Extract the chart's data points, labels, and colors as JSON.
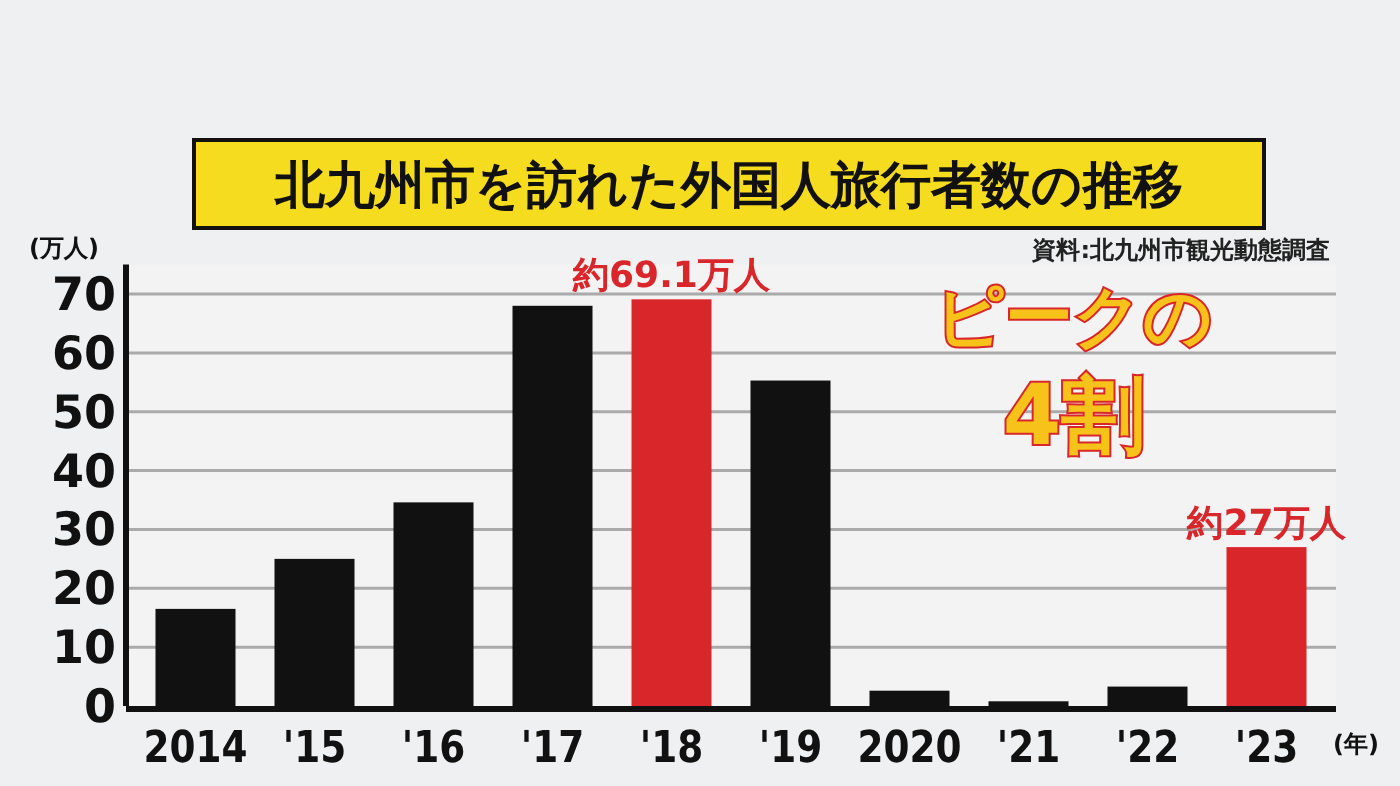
{
  "chart_data": {
    "type": "bar",
    "title": "北九州市を訪れた外国人旅行者数の推移",
    "ylabel": "(万人)",
    "xlabel": "(年)",
    "categories": [
      "2014",
      "'15",
      "'16",
      "'17",
      "'18",
      "'19",
      "2020",
      "'21",
      "'22",
      "'23"
    ],
    "values": [
      16.5,
      25,
      34.6,
      68,
      69.1,
      55.3,
      2.6,
      0.8,
      3.3,
      27
    ],
    "colors": [
      "#111111",
      "#111111",
      "#111111",
      "#111111",
      "#d9262a",
      "#111111",
      "#111111",
      "#111111",
      "#111111",
      "#d9262a"
    ],
    "value_labels": [
      null,
      null,
      null,
      null,
      "約69.1万人",
      null,
      null,
      null,
      null,
      "約27万人"
    ],
    "ylim": [
      0,
      75
    ],
    "yticks": [
      0,
      10,
      20,
      30,
      40,
      50,
      60,
      70
    ],
    "grid": "y",
    "annotations": [
      "資料:北九州市観光動態調査",
      "ピークの",
      "4割"
    ]
  }
}
